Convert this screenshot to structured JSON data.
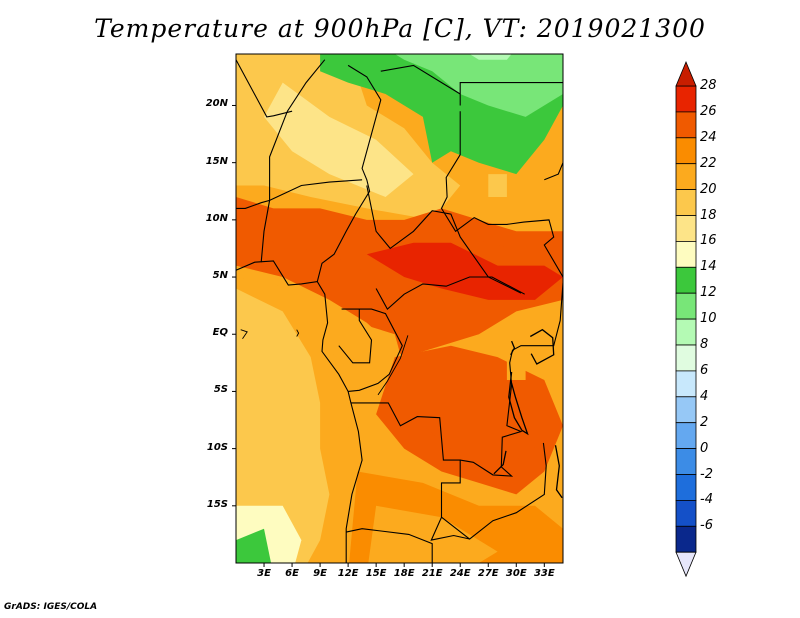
{
  "title": "Temperature at 900hPa [C], VT: 2019021300",
  "footer": "GrADS: IGES/COLA",
  "lat_labels": [
    "20N",
    "15N",
    "10N",
    "5N",
    "EQ",
    "5S",
    "10S",
    "15S"
  ],
  "lat_values": [
    20,
    15,
    10,
    5,
    0,
    -5,
    -10,
    -15
  ],
  "lon_labels": [
    "3E",
    "6E",
    "9E",
    "12E",
    "15E",
    "18E",
    "21E",
    "24E",
    "27E",
    "30E",
    "33E"
  ],
  "lon_values": [
    3,
    6,
    9,
    12,
    15,
    18,
    21,
    24,
    27,
    30,
    33
  ],
  "colorbar": {
    "labels": [
      "28",
      "26",
      "24",
      "22",
      "20",
      "18",
      "16",
      "14",
      "12",
      "10",
      "8",
      "6",
      "4",
      "2",
      "0",
      "-2",
      "-4",
      "-6"
    ],
    "levels": [
      {
        "min": 26,
        "max": 28,
        "color": "#e82400"
      },
      {
        "min": 24,
        "max": 26,
        "color": "#f05a00"
      },
      {
        "min": 22,
        "max": 24,
        "color": "#fa8c00"
      },
      {
        "min": 20,
        "max": 22,
        "color": "#fcaa1e"
      },
      {
        "min": 18,
        "max": 20,
        "color": "#fcc84c"
      },
      {
        "min": 16,
        "max": 18,
        "color": "#fde488"
      },
      {
        "min": 14,
        "max": 16,
        "color": "#fefcc0"
      },
      {
        "min": 12,
        "max": 14,
        "color": "#3cc83c"
      },
      {
        "min": 10,
        "max": 12,
        "color": "#78e678"
      },
      {
        "min": 8,
        "max": 10,
        "color": "#b4fab4"
      },
      {
        "min": 6,
        "max": 8,
        "color": "#e0fce0"
      },
      {
        "min": 4,
        "max": 6,
        "color": "#c8e8fc"
      },
      {
        "min": 2,
        "max": 4,
        "color": "#96c8f6"
      },
      {
        "min": 0,
        "max": 2,
        "color": "#64a8f0"
      },
      {
        "min": -2,
        "max": 0,
        "color": "#3c8ce6"
      },
      {
        "min": -4,
        "max": -2,
        "color": "#1e6edc"
      },
      {
        "min": -6,
        "max": -4,
        "color": "#1450c8"
      },
      {
        "min": -8,
        "max": -6,
        "color": "#0a288c"
      }
    ],
    "overflow_low_color": "#e6e6fa",
    "overflow_high_color": "#c81e00"
  },
  "map_region": {
    "lon_min": 0,
    "lon_max": 35,
    "lat_min": -20,
    "lat_max": 24.5
  }
}
